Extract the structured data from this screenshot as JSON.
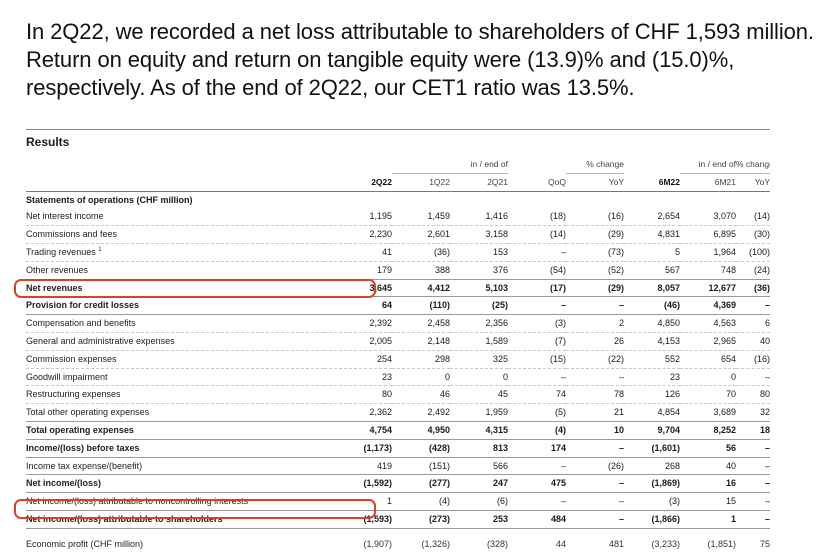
{
  "headline": "In 2Q22, we recorded a net loss attributable to shareholders of CHF 1,593 million. Return on equity and return on tangible equity were (13.9)% and (15.0)%, respectively. As of the end of 2Q22, our CET1 ratio was 13.5%.",
  "table": {
    "title": "Results",
    "group_headers": {
      "in_end_of_1": "in / end of",
      "pct_change_1": "% change",
      "in_end_of_2": "in / end of",
      "pct_change_2": "% change"
    },
    "columns": [
      "2Q22",
      "1Q22",
      "2Q21",
      "QoQ",
      "YoY",
      "6M22",
      "6M21",
      "YoY"
    ],
    "section_title": "Statements of operations (CHF million)",
    "rows": [
      {
        "label": "Net interest income",
        "values": [
          "1,195",
          "1,459",
          "1,416",
          "(18)",
          "(16)",
          "2,654",
          "3,070",
          "(14)"
        ]
      },
      {
        "label": "Commissions and fees",
        "values": [
          "2,230",
          "2,601",
          "3,158",
          "(14)",
          "(29)",
          "4,831",
          "6,895",
          "(30)"
        ]
      },
      {
        "label": "Trading revenues",
        "footnote": "1",
        "values": [
          "41",
          "(36)",
          "153",
          "–",
          "(73)",
          "5",
          "1,964",
          "(100)"
        ]
      },
      {
        "label": "Other revenues",
        "values": [
          "179",
          "388",
          "376",
          "(54)",
          "(52)",
          "567",
          "748",
          "(24)"
        ]
      },
      {
        "label": "Net revenues",
        "values": [
          "3,645",
          "4,412",
          "5,103",
          "(17)",
          "(29)",
          "8,057",
          "12,677",
          "(36)"
        ]
      },
      {
        "label": "Provision for credit losses",
        "values": [
          "64",
          "(110)",
          "(25)",
          "–",
          "–",
          "(46)",
          "4,369",
          "–"
        ]
      },
      {
        "label": "Compensation and benefits",
        "values": [
          "2,392",
          "2,458",
          "2,356",
          "(3)",
          "2",
          "4,850",
          "4,563",
          "6"
        ]
      },
      {
        "label": "General and administrative expenses",
        "values": [
          "2,005",
          "2,148",
          "1,589",
          "(7)",
          "26",
          "4,153",
          "2,965",
          "40"
        ]
      },
      {
        "label": "Commission expenses",
        "values": [
          "254",
          "298",
          "325",
          "(15)",
          "(22)",
          "552",
          "654",
          "(16)"
        ]
      },
      {
        "label": "Goodwill impairment",
        "values": [
          "23",
          "0",
          "0",
          "–",
          "–",
          "23",
          "0",
          "–"
        ]
      },
      {
        "label": "Restructuring expenses",
        "values": [
          "80",
          "46",
          "45",
          "74",
          "78",
          "126",
          "70",
          "80"
        ]
      },
      {
        "label": "Total other operating expenses",
        "values": [
          "2,362",
          "2,492",
          "1,959",
          "(5)",
          "21",
          "4,854",
          "3,689",
          "32"
        ]
      },
      {
        "label": "Total operating expenses",
        "values": [
          "4,754",
          "4,950",
          "4,315",
          "(4)",
          "10",
          "9,704",
          "8,252",
          "18"
        ]
      },
      {
        "label": "Income/(loss) before taxes",
        "values": [
          "(1,173)",
          "(428)",
          "813",
          "174",
          "–",
          "(1,601)",
          "56",
          "–"
        ]
      },
      {
        "label": "Income tax expense/(benefit)",
        "values": [
          "419",
          "(151)",
          "566",
          "–",
          "(26)",
          "268",
          "40",
          "–"
        ]
      },
      {
        "label": "Net income/(loss)",
        "values": [
          "(1,592)",
          "(277)",
          "247",
          "475",
          "–",
          "(1,869)",
          "16",
          "–"
        ]
      },
      {
        "label": "Net income/(loss) attributable to noncontrolling interests",
        "values": [
          "1",
          "(4)",
          "(6)",
          "–",
          "–",
          "(3)",
          "15",
          "–"
        ]
      },
      {
        "label": "Net income/(loss) attributable to shareholders",
        "values": [
          "(1,593)",
          "(273)",
          "253",
          "484",
          "–",
          "(1,866)",
          "1",
          "–"
        ]
      },
      {
        "label": "Economic profit (CHF million)",
        "values": [
          "(1,907)",
          "(1,326)",
          "(328)",
          "44",
          "481",
          "(3,233)",
          "(1,851)",
          "75"
        ]
      }
    ]
  }
}
